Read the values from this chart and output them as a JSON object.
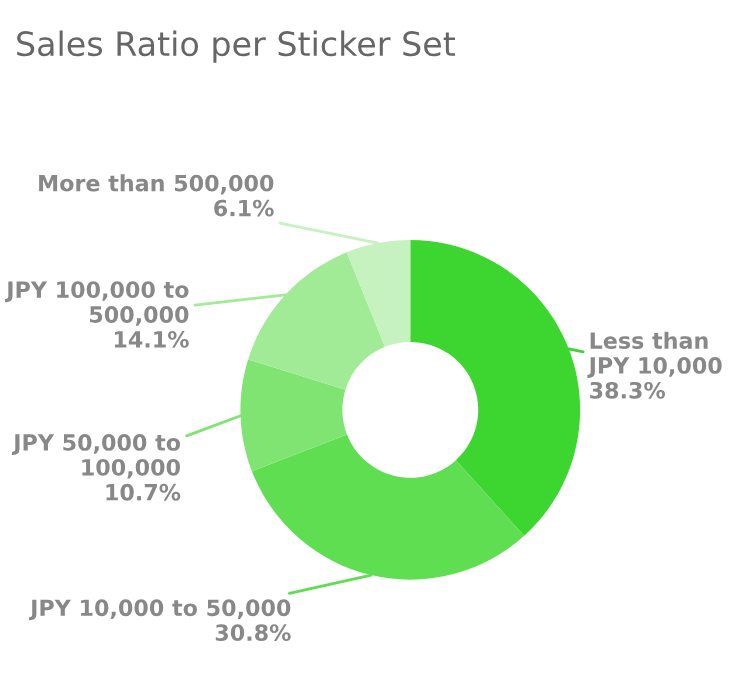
{
  "chart_data": {
    "type": "donut",
    "title": "Sales Ratio per Sticker Set",
    "categories": [
      "Less than\nJPY 10,000",
      "JPY 10,000 to 50,000",
      "JPY 50,000 to\n100,000",
      "JPY 100,000 to\n500,000",
      "More than 500,000"
    ],
    "values": [
      38.3,
      30.8,
      10.7,
      14.1,
      6.1
    ],
    "value_labels": [
      "38.3%",
      "30.8%",
      "10.7%",
      "14.1%",
      "6.1%"
    ],
    "colors": [
      "#3dd630",
      "#5ede50",
      "#7fe472",
      "#a2eb96",
      "#c6f2bf"
    ],
    "legend": false
  }
}
